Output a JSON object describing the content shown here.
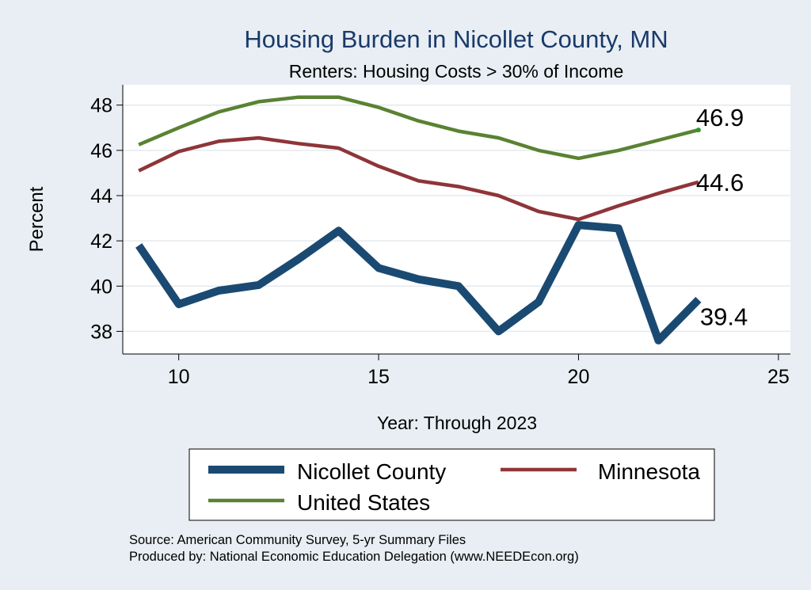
{
  "chart_data": {
    "type": "line",
    "title": "Housing Burden in Nicollet County, MN",
    "subtitle": "Renters: Housing Costs > 30% of Income",
    "xlabel": "Year: Through 2023",
    "ylabel": "Percent",
    "xlim": [
      8.6,
      25.3
    ],
    "ylim": [
      37.0,
      48.9
    ],
    "x_ticks": [
      10,
      15,
      20,
      25
    ],
    "y_ticks": [
      38,
      40,
      42,
      44,
      46,
      48
    ],
    "grid": true,
    "x": [
      9,
      10,
      11,
      12,
      13,
      14,
      15,
      16,
      17,
      18,
      19,
      20,
      21,
      22,
      23
    ],
    "series": [
      {
        "name": "Nicollet County",
        "color": "#1a4a72",
        "values": [
          41.8,
          39.2,
          39.8,
          40.05,
          41.2,
          42.45,
          40.8,
          40.3,
          40.0,
          38.0,
          39.3,
          42.7,
          42.55,
          37.6,
          39.4
        ],
        "end_label": "39.4"
      },
      {
        "name": "Minnesota",
        "color": "#8e3539",
        "values": [
          45.1,
          45.95,
          46.4,
          46.55,
          46.3,
          46.1,
          45.3,
          44.65,
          44.4,
          44.0,
          43.3,
          42.95,
          43.55,
          44.1,
          44.6
        ],
        "end_label": "44.6"
      },
      {
        "name": "United States",
        "color": "#5a8232",
        "values": [
          46.25,
          47.0,
          47.7,
          48.15,
          48.35,
          48.35,
          47.9,
          47.3,
          46.85,
          46.55,
          46.0,
          45.65,
          46.0,
          46.45,
          46.9
        ],
        "end_label": "46.9"
      }
    ],
    "legend_position": "bottom",
    "notes": [
      "Source: American Community Survey, 5-yr Summary Files",
      "Produced by: National Economic Education Delegation (www.NEEDEcon.org)"
    ]
  }
}
